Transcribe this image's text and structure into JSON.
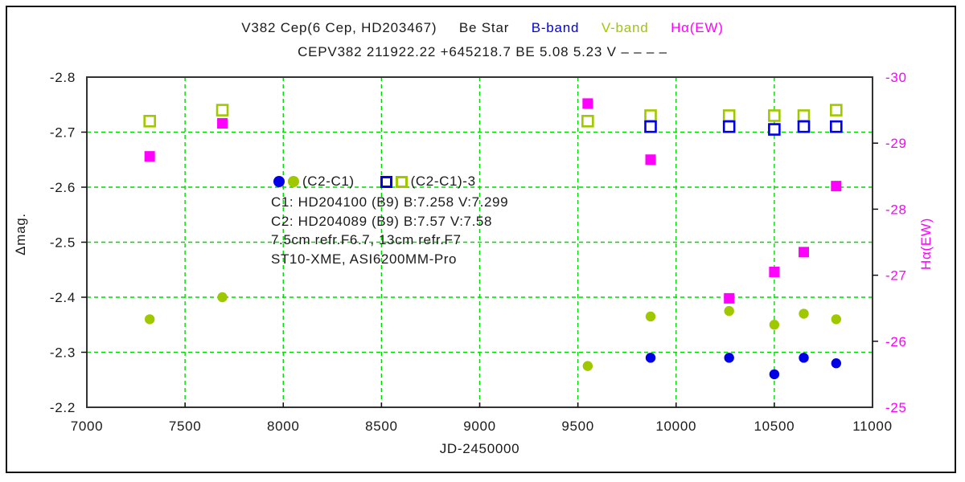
{
  "colors": {
    "blue": "#0000E6",
    "olive": "#A0C800",
    "magenta": "#FF00FF",
    "grid_green": "#00D900",
    "axis_black": "#111111",
    "frame_gray": "#333333",
    "text_black": "#1A1A1A"
  },
  "header": {
    "title_main": "V382 Cep(6 Cep, HD203467)",
    "title_star_type": "Be Star",
    "title_b_band": "B-band",
    "title_v_band": "V-band",
    "title_halpha": "Hα(EW)",
    "subtitle": "CEPV382 211922.22 +645218.7 BE 5.08 5.23 V – – – –"
  },
  "legend": {
    "filled_label": "(C2-C1)",
    "open_label": "(C2-C1)-3"
  },
  "annotations": {
    "line1": "C1: HD204100 (B9)  B:7.258 V:7.299",
    "line2": "C2: HD204089 (B9)  B:7.57 V:7.58",
    "line3": "7.5cm refr.F6.7, 13cm refr.F7",
    "line4": "ST10-XME, ASI6200MM-Pro"
  },
  "chart_data": {
    "type": "scatter",
    "title": "V382 Cep(6 Cep, HD203467) Be Star — B-band, V-band, Hα(EW)",
    "xlabel": "JD-2450000",
    "ylabel_left": "Δmag.",
    "ylabel_right": "Hα(EW)",
    "grid": true,
    "x_axis": {
      "min": 7000,
      "max": 11000,
      "ticks": [
        7000,
        7500,
        8000,
        8500,
        9000,
        9500,
        10000,
        10500,
        11000
      ],
      "gridlines": [
        7500,
        8000,
        8500,
        9000,
        9500,
        10000,
        10500
      ]
    },
    "y_axis_left": {
      "min": -2.8,
      "max": -2.2,
      "inverted_top_is_min": true,
      "ticks": [
        -2.8,
        -2.7,
        -2.6,
        -2.5,
        -2.4,
        -2.3,
        -2.2
      ],
      "gridlines": [
        -2.7,
        -2.6,
        -2.5,
        -2.4,
        -2.3
      ]
    },
    "y_axis_right": {
      "min": -30,
      "max": -25,
      "ticks": [
        -30,
        -29,
        -28,
        -27,
        -26,
        -25
      ],
      "tick_marks": [
        -29,
        -28,
        -27,
        -26
      ]
    },
    "series": [
      {
        "name": "V-band (C2-C1)-3",
        "marker": "square_open",
        "color": "#A0C800",
        "axis": "left",
        "points": [
          [
            7320,
            -2.72
          ],
          [
            7690,
            -2.74
          ],
          [
            9550,
            -2.72
          ],
          [
            9870,
            -2.73
          ],
          [
            10270,
            -2.73
          ],
          [
            10500,
            -2.73
          ],
          [
            10650,
            -2.73
          ],
          [
            10815,
            -2.74
          ]
        ]
      },
      {
        "name": "B-band (C2-C1)-3",
        "marker": "square_open",
        "color": "#0000E6",
        "axis": "left",
        "points": [
          [
            9870,
            -2.71
          ],
          [
            10270,
            -2.71
          ],
          [
            10500,
            -2.705
          ],
          [
            10650,
            -2.71
          ],
          [
            10815,
            -2.71
          ]
        ]
      },
      {
        "name": "Hα(EW)",
        "marker": "square",
        "color": "#FF00FF",
        "axis": "right",
        "points": [
          [
            7320,
            -28.8
          ],
          [
            7690,
            -29.3
          ],
          [
            9550,
            -29.6
          ],
          [
            9870,
            -28.75
          ],
          [
            10270,
            -26.65
          ],
          [
            10500,
            -27.05
          ],
          [
            10650,
            -27.35
          ],
          [
            10815,
            -28.35
          ]
        ]
      },
      {
        "name": "V-band (C2-C1)",
        "marker": "circle",
        "color": "#A0C800",
        "axis": "left",
        "points": [
          [
            7320,
            -2.36
          ],
          [
            7690,
            -2.4
          ],
          [
            9550,
            -2.275
          ],
          [
            9870,
            -2.365
          ],
          [
            10270,
            -2.375
          ],
          [
            10500,
            -2.35
          ],
          [
            10650,
            -2.37
          ],
          [
            10815,
            -2.36
          ]
        ]
      },
      {
        "name": "B-band (C2-C1)",
        "marker": "circle",
        "color": "#0000E6",
        "axis": "left",
        "points": [
          [
            9870,
            -2.29
          ],
          [
            10270,
            -2.29
          ],
          [
            10500,
            -2.26
          ],
          [
            10650,
            -2.29
          ],
          [
            10815,
            -2.28
          ]
        ]
      }
    ]
  }
}
